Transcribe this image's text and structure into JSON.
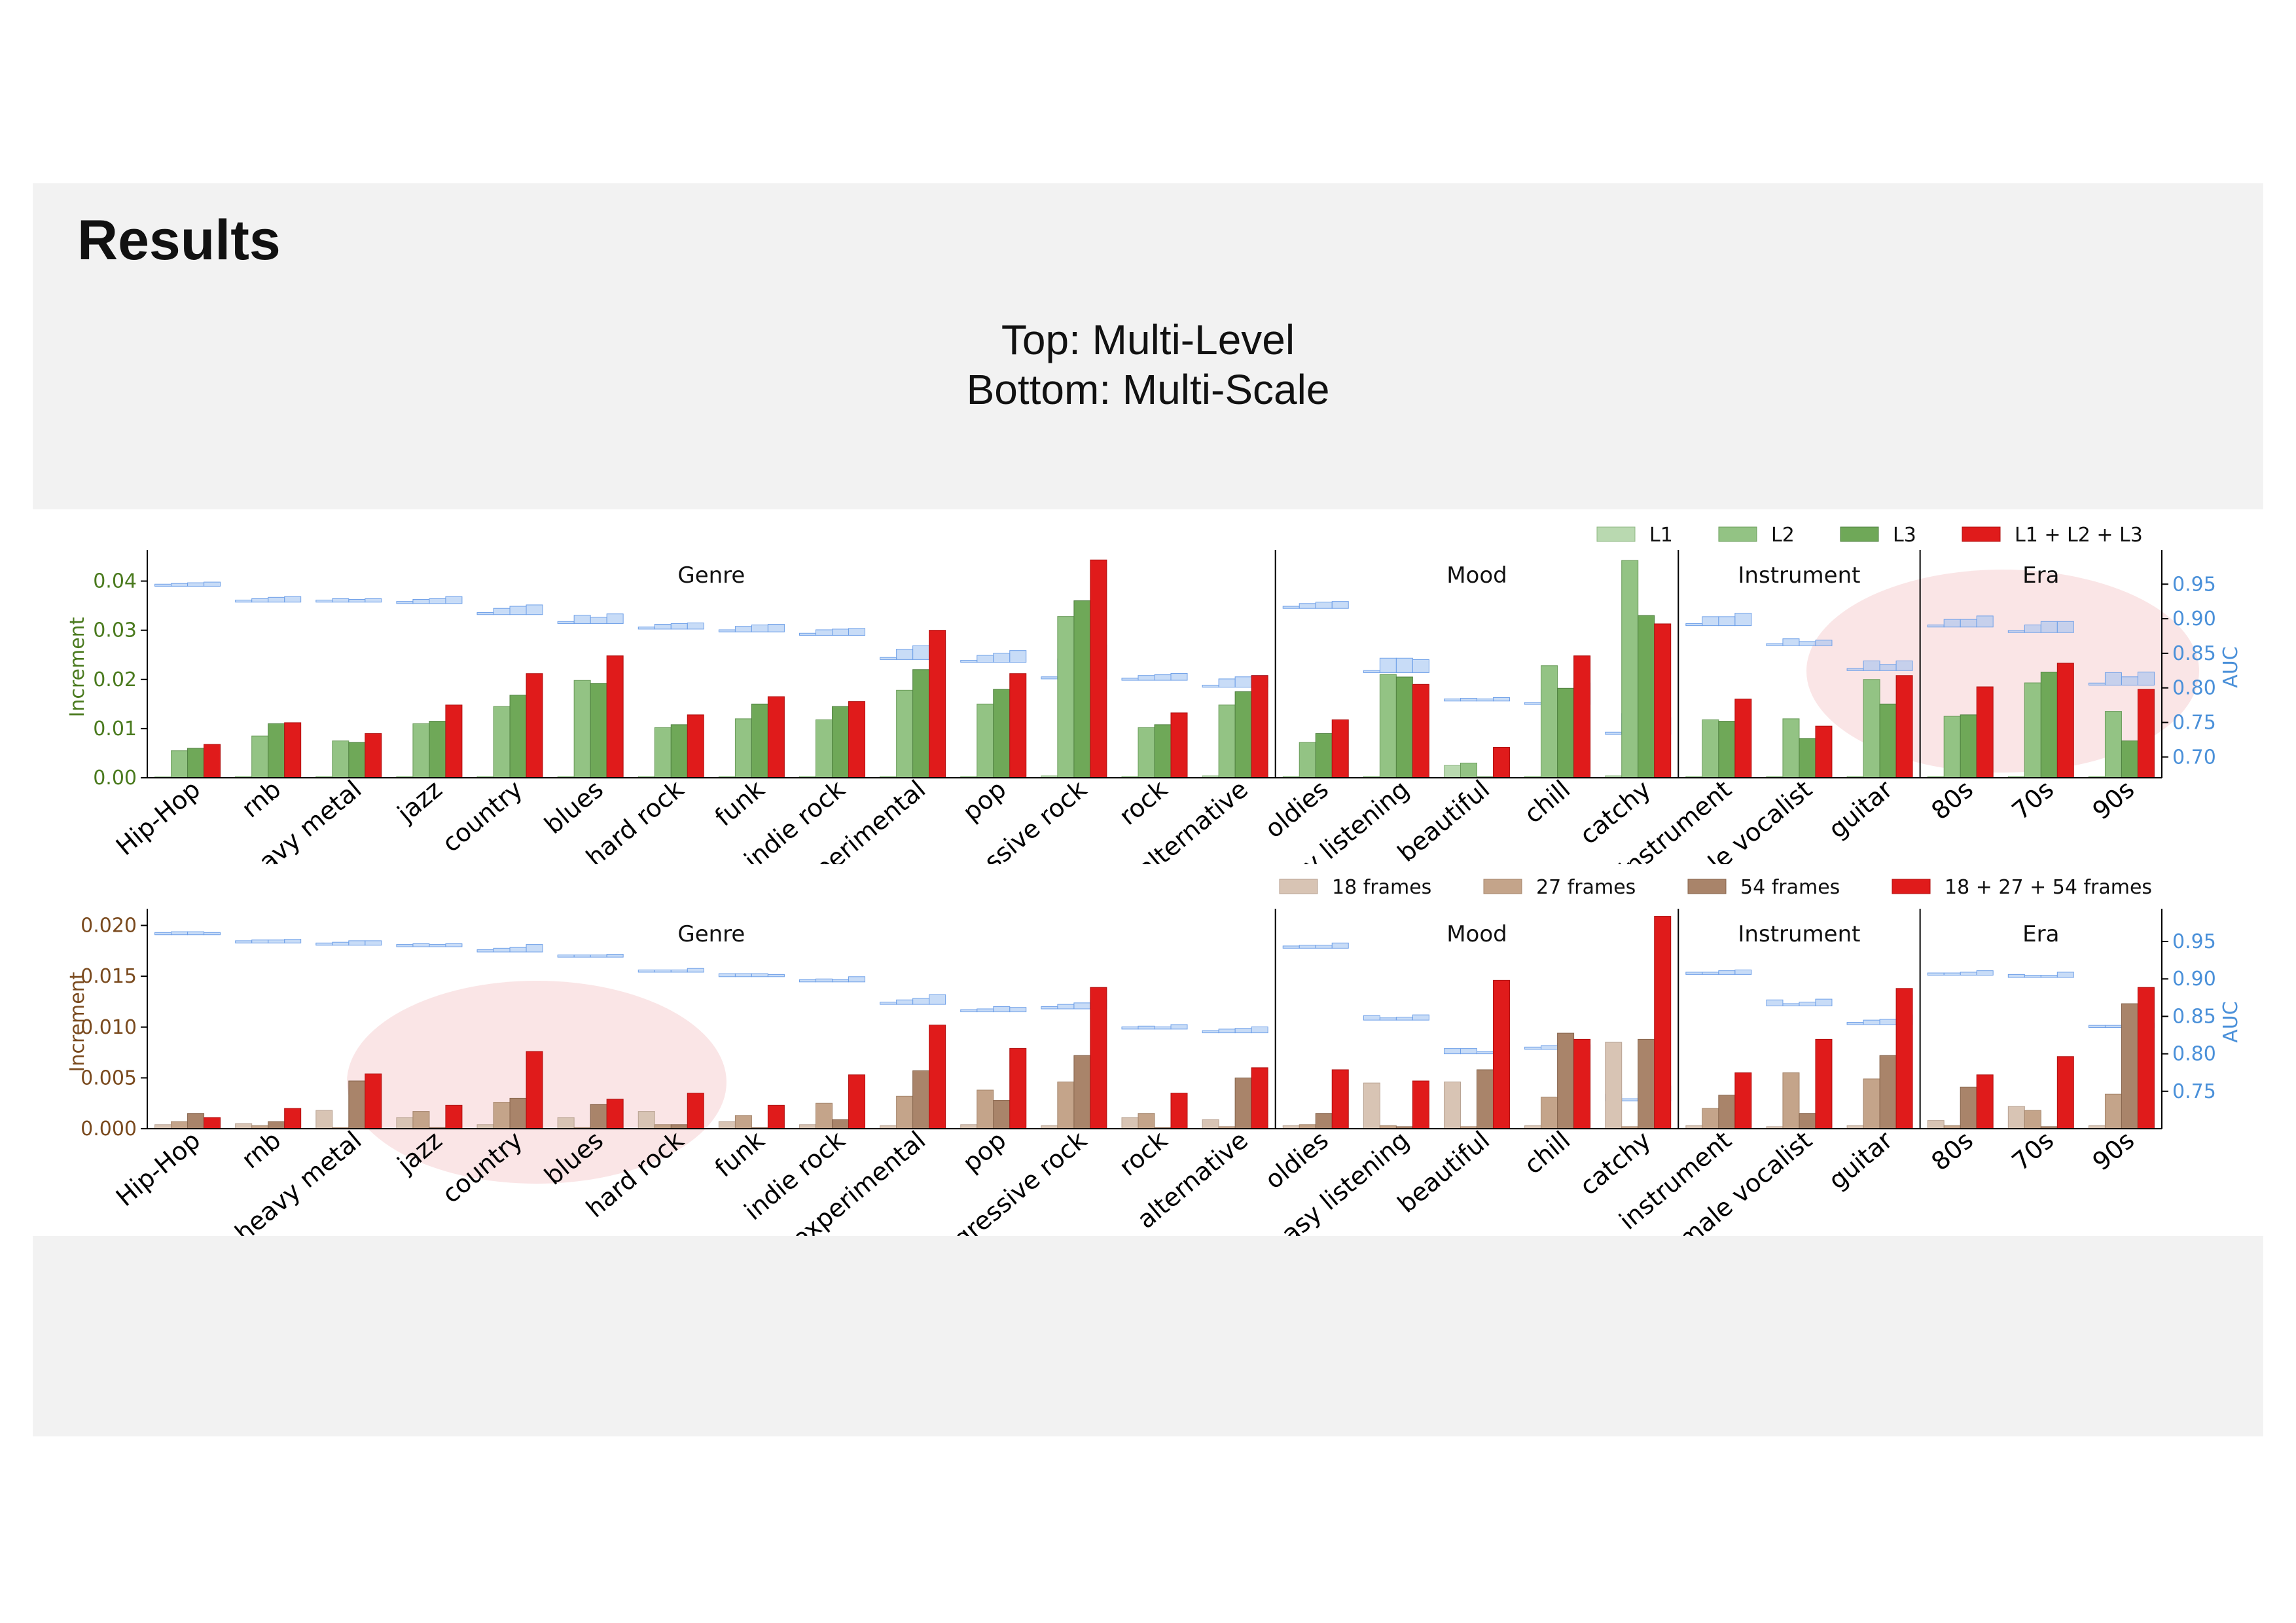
{
  "slide": {
    "title": "Results",
    "subtitle_line1": "Top: Multi-Level",
    "subtitle_line2": "Bottom: Multi-Scale"
  },
  "colors": {
    "l1": "#b9d9b0",
    "l2": "#93c384",
    "l3": "#6fa858",
    "combined": "#e01b1b",
    "f18": "#d8c4b4",
    "f27": "#c4a48a",
    "f54": "#a9846a",
    "auc": "#9bbff0",
    "highlight": "#f5c5c8",
    "left_axis_top": "#4a7a1e",
    "left_axis_bottom": "#7a4a1e",
    "right_axis": "#4a90d9"
  },
  "chart_data": [
    {
      "type": "bar",
      "categories": [
        "Hip-Hop",
        "rnb",
        "heavy metal",
        "jazz",
        "country",
        "blues",
        "hard rock",
        "funk",
        "indie rock",
        "experimental",
        "pop",
        "Progressive rock",
        "rock",
        "alternative",
        "oldies",
        "easy listening",
        "beautiful",
        "chill",
        "catchy",
        "instrument",
        "female vocalist",
        "guitar",
        "80s",
        "70s",
        "90s"
      ],
      "groups": [
        {
          "label": "Genre",
          "start": 0,
          "end": 13
        },
        {
          "label": "Mood",
          "start": 14,
          "end": 18
        },
        {
          "label": "Instrument",
          "start": 19,
          "end": 21
        },
        {
          "label": "Era",
          "start": 22,
          "end": 24
        }
      ],
      "series": [
        {
          "name": "L1",
          "values": [
            0.0002,
            0.0003,
            0.0003,
            0.0003,
            0.0003,
            0.0003,
            0.0003,
            0.0003,
            0.0003,
            0.0003,
            0.0003,
            0.0004,
            0.0003,
            0.0004,
            0.0003,
            0.0003,
            0.0025,
            0.0003,
            0.0004,
            0.0003,
            0.0003,
            0.0003,
            0.0003,
            0.0003,
            0.0003
          ]
        },
        {
          "name": "L2",
          "values": [
            0.0055,
            0.0085,
            0.0075,
            0.011,
            0.0145,
            0.0198,
            0.0102,
            0.012,
            0.0118,
            0.0178,
            0.015,
            0.0328,
            0.0102,
            0.0148,
            0.0072,
            0.021,
            0.003,
            0.0228,
            0.0442,
            0.0118,
            0.012,
            0.02,
            0.0125,
            0.0193,
            0.0135
          ]
        },
        {
          "name": "L3",
          "values": [
            0.006,
            0.011,
            0.0072,
            0.0115,
            0.0168,
            0.0192,
            0.0108,
            0.015,
            0.0145,
            0.022,
            0.018,
            0.036,
            0.0108,
            0.0175,
            0.009,
            0.0205,
            0.0002,
            0.0182,
            0.033,
            0.0115,
            0.008,
            0.015,
            0.0128,
            0.0215,
            0.0075
          ]
        },
        {
          "name": "L1 + L2 + L3",
          "values": [
            0.0068,
            0.0112,
            0.009,
            0.0148,
            0.0212,
            0.0248,
            0.0128,
            0.0165,
            0.0155,
            0.03,
            0.0212,
            0.0443,
            0.0132,
            0.0208,
            0.0118,
            0.019,
            0.0062,
            0.0248,
            0.0313,
            0.016,
            0.0105,
            0.0208,
            0.0185,
            0.0233,
            0.018
          ]
        }
      ],
      "auc": [
        [
          0.95,
          0.951,
          0.952,
          0.953
        ],
        [
          0.927,
          0.929,
          0.931,
          0.932
        ],
        [
          0.927,
          0.929,
          0.928,
          0.929
        ],
        [
          0.925,
          0.928,
          0.929,
          0.932
        ],
        [
          0.909,
          0.915,
          0.918,
          0.92
        ],
        [
          0.896,
          0.905,
          0.902,
          0.907
        ],
        [
          0.888,
          0.892,
          0.893,
          0.894
        ],
        [
          0.884,
          0.889,
          0.891,
          0.892
        ],
        [
          0.879,
          0.884,
          0.885,
          0.886
        ],
        [
          0.844,
          0.856,
          0.861,
          0.868
        ],
        [
          0.84,
          0.847,
          0.85,
          0.854
        ],
        [
          0.816,
          0.842,
          0.848,
          0.862
        ],
        [
          0.814,
          0.818,
          0.819,
          0.821
        ],
        [
          0.804,
          0.813,
          0.816,
          0.818
        ],
        [
          0.918,
          0.922,
          0.924,
          0.925
        ],
        [
          0.825,
          0.843,
          0.843,
          0.841
        ],
        [
          0.784,
          0.785,
          0.784,
          0.786
        ],
        [
          0.779,
          0.798,
          0.797,
          0.807
        ],
        [
          0.736,
          0.763,
          0.755,
          0.757
        ],
        [
          0.893,
          0.903,
          0.903,
          0.908
        ],
        [
          0.864,
          0.871,
          0.867,
          0.869
        ],
        [
          0.828,
          0.839,
          0.834,
          0.839
        ],
        [
          0.891,
          0.899,
          0.899,
          0.904
        ],
        [
          0.883,
          0.891,
          0.896,
          0.896
        ],
        [
          0.807,
          0.822,
          0.816,
          0.823
        ]
      ],
      "ylabel": "Increment",
      "y2label": "AUC",
      "ylim": [
        0,
        0.045
      ],
      "y_ticks": [
        "0.00",
        "0.01",
        "0.02",
        "0.03",
        "0.04"
      ],
      "y2lim": [
        0.67,
        0.99
      ],
      "y2_ticks": [
        "0.70",
        "0.75",
        "0.80",
        "0.85",
        "0.90",
        "0.95"
      ],
      "legend": [
        "L1",
        "L2",
        "L3",
        "L1 + L2 + L3"
      ],
      "legend_position": "top-right",
      "highlight": "ellipse over Era and guitar"
    },
    {
      "type": "bar",
      "categories": [
        "Hip-Hop",
        "rnb",
        "heavy metal",
        "jazz",
        "country",
        "blues",
        "hard rock",
        "funk",
        "indie rock",
        "experimental",
        "pop",
        "Progressive rock",
        "rock",
        "alternative",
        "oldies",
        "easy listening",
        "beautiful",
        "chill",
        "catchy",
        "instrument",
        "female vocalist",
        "guitar",
        "80s",
        "70s",
        "90s"
      ],
      "groups": [
        {
          "label": "Genre",
          "start": 0,
          "end": 13
        },
        {
          "label": "Mood",
          "start": 14,
          "end": 18
        },
        {
          "label": "Instrument",
          "start": 19,
          "end": 21
        },
        {
          "label": "Era",
          "start": 22,
          "end": 24
        }
      ],
      "series": [
        {
          "name": "18 frames",
          "values": [
            0.0004,
            0.0005,
            0.0018,
            0.0011,
            0.0004,
            0.0011,
            0.0017,
            0.0007,
            0.0004,
            0.0003,
            0.0004,
            0.0003,
            0.0011,
            0.0009,
            0.0003,
            0.0045,
            0.0046,
            0.0003,
            0.0085,
            0.0003,
            0.0002,
            0.0003,
            0.0008,
            0.0022,
            0.0003
          ]
        },
        {
          "name": "27 frames",
          "values": [
            0.0007,
            0.0003,
            0.0001,
            0.0017,
            0.0026,
            0.0001,
            0.0004,
            0.0013,
            0.0025,
            0.0032,
            0.0038,
            0.0046,
            0.0015,
            0.0002,
            0.0004,
            0.0003,
            0.0002,
            0.0031,
            0.0002,
            0.002,
            0.0055,
            0.0049,
            0.0003,
            0.0018,
            0.0034
          ]
        },
        {
          "name": "54 frames",
          "values": [
            0.0015,
            0.0007,
            0.0047,
            0.0001,
            0.003,
            0.0024,
            0.0004,
            0.0001,
            0.0009,
            0.0057,
            0.0028,
            0.0072,
            0.0001,
            0.005,
            0.0015,
            0.0002,
            0.0058,
            0.0094,
            0.0088,
            0.0033,
            0.0015,
            0.0072,
            0.0041,
            0.0002,
            0.0123
          ]
        },
        {
          "name": "18 + 27 + 54 frames",
          "values": [
            0.0011,
            0.002,
            0.0054,
            0.0023,
            0.0076,
            0.0029,
            0.0035,
            0.0023,
            0.0053,
            0.0102,
            0.0079,
            0.0139,
            0.0035,
            0.006,
            0.0058,
            0.0047,
            0.0146,
            0.0088,
            0.0209,
            0.0055,
            0.0088,
            0.0138,
            0.0053,
            0.0071,
            0.0139
          ]
        }
      ],
      "auc": [
        [
          0.962,
          0.963,
          0.963,
          0.962
        ],
        [
          0.951,
          0.952,
          0.952,
          0.953
        ],
        [
          0.948,
          0.949,
          0.951,
          0.951
        ],
        [
          0.946,
          0.947,
          0.946,
          0.947
        ],
        [
          0.939,
          0.941,
          0.942,
          0.946
        ],
        [
          0.932,
          0.932,
          0.932,
          0.933
        ],
        [
          0.912,
          0.912,
          0.912,
          0.914
        ],
        [
          0.907,
          0.907,
          0.907,
          0.906
        ],
        [
          0.899,
          0.9,
          0.899,
          0.903
        ],
        [
          0.869,
          0.872,
          0.874,
          0.879
        ],
        [
          0.859,
          0.86,
          0.863,
          0.862
        ],
        [
          0.863,
          0.866,
          0.868,
          0.872
        ],
        [
          0.836,
          0.837,
          0.836,
          0.839
        ],
        [
          0.831,
          0.833,
          0.834,
          0.836
        ],
        [
          0.944,
          0.945,
          0.945,
          0.948
        ],
        [
          0.851,
          0.848,
          0.849,
          0.852
        ],
        [
          0.807,
          0.807,
          0.803,
          0.815
        ],
        [
          0.809,
          0.811,
          0.814,
          0.812
        ],
        [
          0.746,
          0.74,
          0.746,
          0.757
        ],
        [
          0.909,
          0.909,
          0.911,
          0.912
        ],
        [
          0.872,
          0.867,
          0.869,
          0.873
        ],
        [
          0.842,
          0.845,
          0.846,
          0.852
        ],
        [
          0.908,
          0.908,
          0.909,
          0.911
        ],
        [
          0.906,
          0.905,
          0.905,
          0.909
        ],
        [
          0.838,
          0.838,
          0.846,
          0.841
        ]
      ],
      "ylabel": "Increment",
      "y2label": "AUC",
      "ylim": [
        0,
        0.021
      ],
      "y_ticks": [
        "0.000",
        "0.005",
        "0.010",
        "0.015",
        "0.020"
      ],
      "y2lim": [
        0.7,
        0.985
      ],
      "y2_ticks": [
        "0.75",
        "0.80",
        "0.85",
        "0.90",
        "0.95"
      ],
      "legend": [
        "18 frames",
        "27 frames",
        "54 frames",
        "18 + 27 + 54 frames"
      ],
      "legend_position": "top-right",
      "highlight": "ellipse over heavy metal through hard rock"
    }
  ]
}
